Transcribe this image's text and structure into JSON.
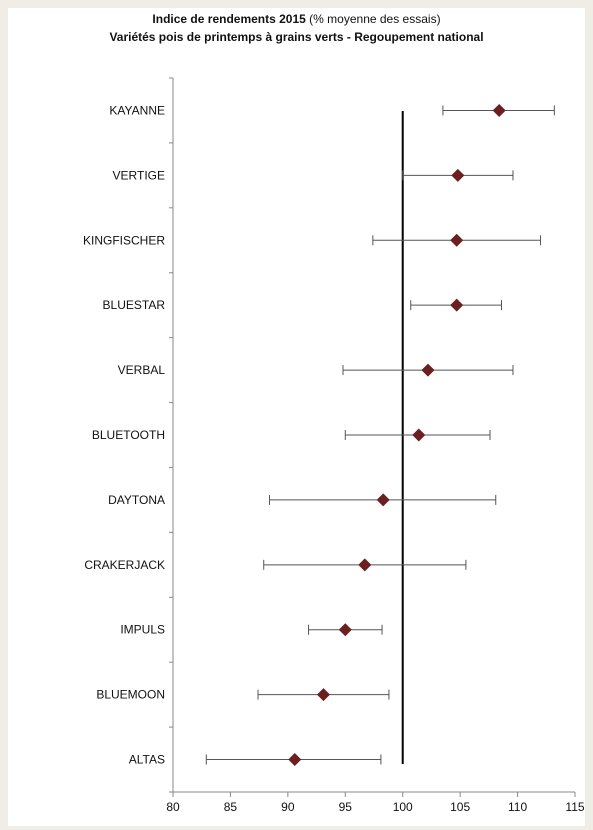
{
  "chart_data": {
    "type": "scatter",
    "title_main": "Indice de rendements 2015",
    "title_note": "(% moyenne des essais)",
    "subtitle": "Variétés pois de printemps à grains verts - Regoupement national",
    "xlim": [
      80,
      115
    ],
    "xticks": [
      80,
      85,
      90,
      95,
      100,
      105,
      110,
      115
    ],
    "reference_x": 100,
    "marker_color": "#6b1f1f",
    "errorbar_color": "#555555",
    "reference_color": "#000000",
    "series": [
      {
        "categories": [
          "KAYANNE",
          "VERTIGE",
          "KINGFISCHER",
          "BLUESTAR",
          "VERBAL",
          "BLUETOOTH",
          "DAYTONA",
          "CRAKERJACK",
          "IMPULS",
          "BLUEMOON",
          "ALTAS"
        ],
        "values": [
          108.4,
          104.8,
          104.7,
          104.7,
          102.2,
          101.4,
          98.3,
          96.7,
          95.0,
          93.1,
          90.6
        ],
        "low": [
          103.5,
          100.0,
          97.4,
          100.7,
          94.8,
          95.0,
          88.4,
          87.9,
          91.8,
          87.4,
          82.9
        ],
        "high": [
          113.2,
          109.6,
          112.0,
          108.6,
          109.6,
          107.6,
          108.1,
          105.5,
          98.2,
          98.8,
          98.1
        ]
      }
    ]
  }
}
